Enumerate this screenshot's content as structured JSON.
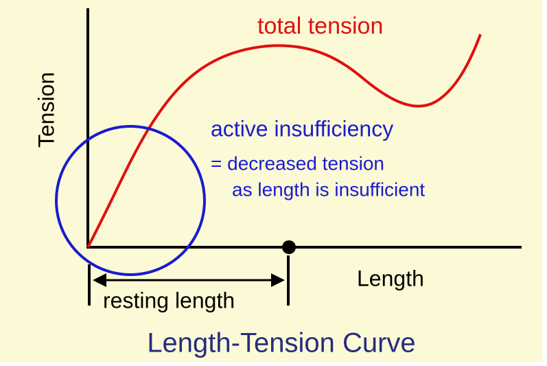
{
  "diagram": {
    "title": "Length-Tension Curve",
    "y_axis_label": "Tension",
    "x_axis_label": "Length",
    "curve_label": "total tension",
    "annotation": {
      "heading": "active insufficiency",
      "lines": [
        "= decreased tension",
        "as length is insufficient"
      ]
    },
    "span_label": "resting length"
  }
}
